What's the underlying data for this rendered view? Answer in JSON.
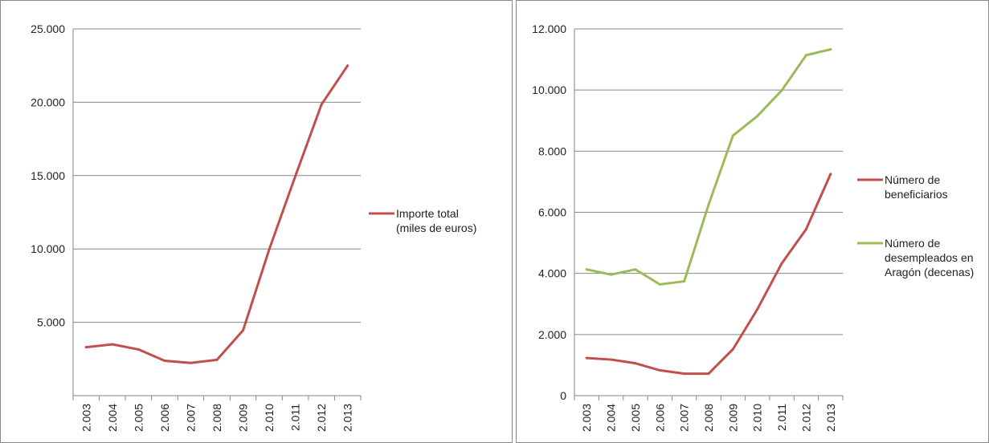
{
  "chart_data": [
    {
      "type": "line",
      "title": "",
      "xlabel": "",
      "ylabel": "",
      "categories": [
        "2.003",
        "2.004",
        "2.005",
        "2.006",
        "2.007",
        "2.008",
        "2.009",
        "2.010",
        "2.011",
        "2.012",
        "2.013"
      ],
      "y_tick_labels": [
        "5.000",
        "10.000",
        "15.000",
        "20.000",
        "25.000"
      ],
      "ylim": [
        0,
        25000
      ],
      "grid": true,
      "legend_position": "right",
      "series": [
        {
          "name": "Importe total (miles de euros)",
          "name_lines": [
            "Importe total",
            "(miles de euros)"
          ],
          "color": "#c0504d",
          "values": [
            3300,
            3500,
            3150,
            2380,
            2230,
            2440,
            4450,
            9970,
            14970,
            19850,
            22500
          ]
        }
      ]
    },
    {
      "type": "line",
      "title": "",
      "xlabel": "",
      "ylabel": "",
      "categories": [
        "2.003",
        "2.004",
        "2.005",
        "2.006",
        "2.007",
        "2.008",
        "2.009",
        "2.010",
        "2.011",
        "2.012",
        "2.013"
      ],
      "y_tick_labels": [
        "0",
        "2.000",
        "4.000",
        "6.000",
        "8.000",
        "10.000",
        "12.000"
      ],
      "ylim": [
        0,
        12000
      ],
      "grid": true,
      "legend_position": "right",
      "series": [
        {
          "name": "Número de beneficiarios",
          "name_lines": [
            "Número de",
            "beneficiarios"
          ],
          "color": "#c0504d",
          "values": [
            1230,
            1180,
            1060,
            830,
            720,
            720,
            1520,
            2830,
            4330,
            5450,
            7250
          ]
        },
        {
          "name": "Número de desempleados en Aragón (decenas)",
          "name_lines": [
            "Número de",
            "desempleados en",
            "Aragón (decenas)"
          ],
          "color": "#9bbb59",
          "values": [
            4130,
            3960,
            4130,
            3640,
            3740,
            6250,
            8510,
            9150,
            9990,
            11140,
            11330
          ]
        }
      ]
    }
  ]
}
